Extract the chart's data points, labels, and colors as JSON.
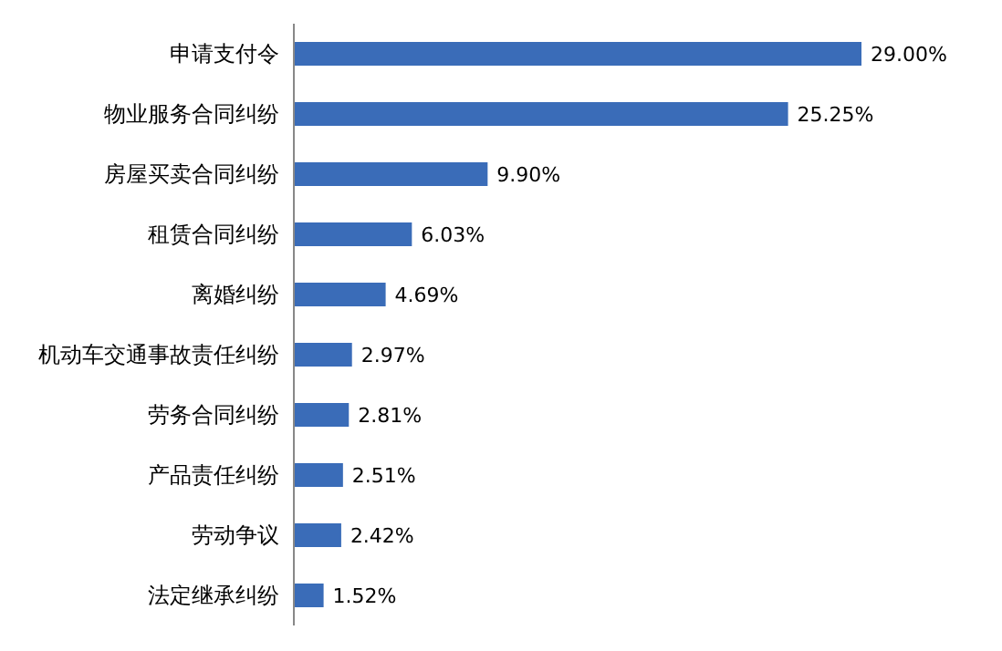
{
  "chart_data": {
    "type": "bar",
    "orientation": "horizontal",
    "categories": [
      "申请支付令",
      "物业服务合同纠纷",
      "房屋买卖合同纠纷",
      "租赁合同纠纷",
      "离婚纠纷",
      "机动车交通事故责任纠纷",
      "劳务合同纠纷",
      "产品责任纠纷",
      "劳动争议",
      "法定继承纠纷"
    ],
    "values": [
      29.0,
      25.25,
      9.9,
      6.03,
      4.69,
      2.97,
      2.81,
      2.51,
      2.42,
      1.52
    ],
    "value_labels": [
      "29.00%",
      "25.25%",
      "9.90%",
      "6.03%",
      "4.69%",
      "2.97%",
      "2.81%",
      "2.51%",
      "2.42%",
      "1.52%"
    ],
    "color": "#3a6cb8"
  }
}
